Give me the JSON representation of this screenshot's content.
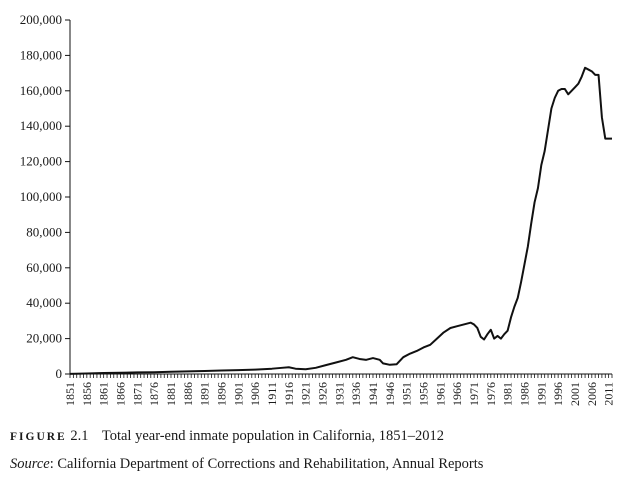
{
  "caption": {
    "figure_label": "FIGURE",
    "figure_number": "2.1",
    "text": "Total year-end inmate population in California, 1851–2012",
    "source_label": "Source",
    "source_text": ": California Department of Corrections and Rehabilitation, Annual Reports"
  },
  "chart_data": {
    "type": "line",
    "title": "",
    "xlabel": "",
    "ylabel": "",
    "xlim": [
      1851,
      2012
    ],
    "ylim": [
      0,
      200000
    ],
    "grid": false,
    "legend": "none",
    "line_color": "#111111",
    "y_ticks": [
      0,
      20000,
      40000,
      60000,
      80000,
      100000,
      120000,
      140000,
      160000,
      180000,
      200000
    ],
    "y_tick_labels": [
      "0",
      "20,000",
      "40,000",
      "60,000",
      "80,000",
      "100,000",
      "120,000",
      "140,000",
      "160,000",
      "180,000",
      "200,000"
    ],
    "x_tick_labels": [
      "1851",
      "1856",
      "1861",
      "1866",
      "1871",
      "1876",
      "1881",
      "1886",
      "1891",
      "1896",
      "1901",
      "1906",
      "1911",
      "1916",
      "1921",
      "1926",
      "1931",
      "1936",
      "1941",
      "1946",
      "1951",
      "1956",
      "1961",
      "1966",
      "1971",
      "1976",
      "1981",
      "1986",
      "1991",
      "1996",
      "2001",
      "2006",
      "2011"
    ],
    "series": [
      {
        "x": [
          1851,
          1856,
          1861,
          1866,
          1871,
          1876,
          1881,
          1886,
          1891,
          1896,
          1901,
          1906,
          1911,
          1914,
          1916,
          1918,
          1921,
          1924,
          1927,
          1930,
          1933,
          1935,
          1937,
          1939,
          1941,
          1943,
          1944,
          1946,
          1948,
          1950,
          1952,
          1954,
          1956,
          1958,
          1960,
          1962,
          1964,
          1966,
          1968,
          1970,
          1971,
          1972,
          1973,
          1974,
          1975,
          1976,
          1977,
          1978,
          1979,
          1980,
          1981,
          1982,
          1983,
          1984,
          1985,
          1986,
          1987,
          1988,
          1989,
          1990,
          1991,
          1992,
          1993,
          1994,
          1995,
          1996,
          1997,
          1998,
          1999,
          2000,
          2001,
          2002,
          2003,
          2004,
          2005,
          2006,
          2007,
          2008,
          2009,
          2010,
          2011,
          2012
        ],
        "y": [
          50,
          300,
          600,
          700,
          900,
          1000,
          1300,
          1500,
          1700,
          2000,
          2200,
          2500,
          3000,
          3500,
          3800,
          3000,
          2700,
          3500,
          5000,
          6500,
          8000,
          9500,
          8500,
          8000,
          9000,
          8000,
          6000,
          5200,
          5500,
          9500,
          11500,
          13000,
          15000,
          16500,
          20000,
          23500,
          26000,
          27000,
          28000,
          29000,
          28000,
          26000,
          21000,
          19500,
          22500,
          25000,
          20000,
          21500,
          20000,
          22500,
          24500,
          32000,
          38000,
          43000,
          52000,
          62000,
          72000,
          85000,
          97000,
          105000,
          118000,
          126000,
          138000,
          150000,
          156000,
          160000,
          161000,
          161000,
          158000,
          160000,
          162000,
          164000,
          168000,
          173000,
          172000,
          171000,
          169000,
          169000,
          145000,
          133000,
          133000,
          133000
        ]
      }
    ]
  }
}
